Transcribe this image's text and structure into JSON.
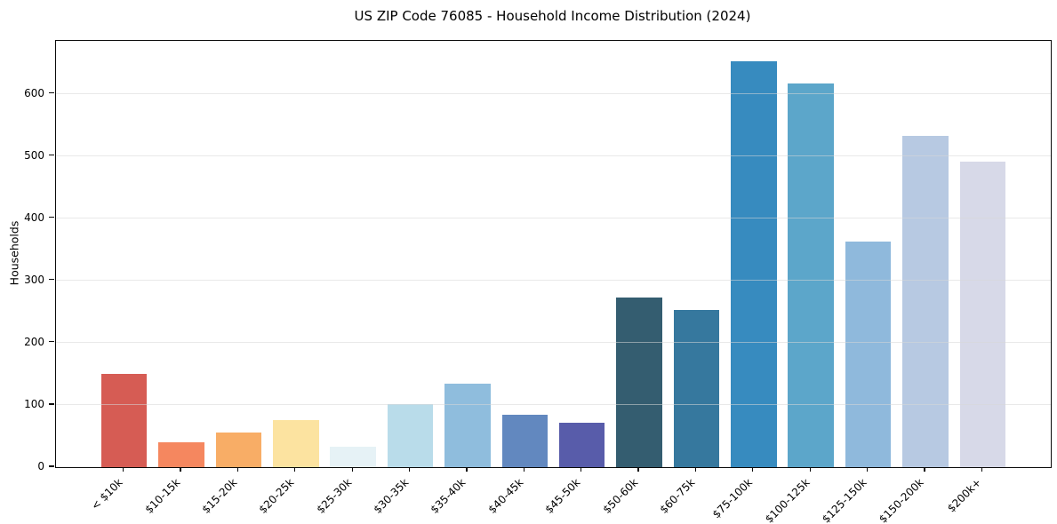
{
  "chart_data": {
    "type": "bar",
    "title": "US ZIP Code 76085 - Household Income Distribution (2024)",
    "xlabel": "",
    "ylabel": "Households",
    "categories": [
      "< $10k",
      "$10-15k",
      "$15-20k",
      "$20-25k",
      "$25-30k",
      "$30-35k",
      "$35-40k",
      "$40-45k",
      "$45-50k",
      "$50-60k",
      "$60-75k",
      "$75-100k",
      "$100-125k",
      "$125-150k",
      "$150-200k",
      "$200k+"
    ],
    "values": [
      150,
      40,
      55,
      75,
      33,
      101,
      134,
      84,
      71,
      273,
      253,
      652,
      617,
      363,
      532,
      491
    ],
    "bar_colors": [
      "#d65c54",
      "#f5875f",
      "#f8ad66",
      "#fce3a0",
      "#e6f2f6",
      "#b9dcea",
      "#8fbddd",
      "#6288bf",
      "#585caa",
      "#345d70",
      "#36789e",
      "#378bbf",
      "#5ca6ca",
      "#8fb9dc",
      "#b7c9e2",
      "#d7d9e8"
    ],
    "yticks": [
      0,
      100,
      200,
      300,
      400,
      500,
      600
    ],
    "ylim": [
      0,
      685
    ],
    "grid": "horizontal-on-top",
    "grid_color_rgba": "rgba(215,215,215,0.55)",
    "legend": "none",
    "background": "#ffffff",
    "spine_color": "#0a0a0a",
    "x_tick_label_rotation_deg": 45
  }
}
